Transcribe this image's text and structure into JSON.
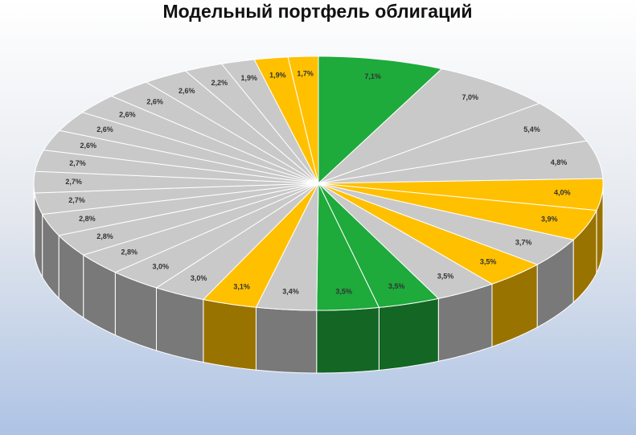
{
  "chart_data": {
    "type": "pie3d",
    "title": "Модельный портфель облигаций",
    "values": [
      7.1,
      7.0,
      5.4,
      4.8,
      4.0,
      3.9,
      3.7,
      3.5,
      3.5,
      3.5,
      3.5,
      3.4,
      3.1,
      3.0,
      3.0,
      2.8,
      2.8,
      2.8,
      2.7,
      2.7,
      2.7,
      2.6,
      2.6,
      2.6,
      2.6,
      2.6,
      2.2,
      1.9,
      1.9,
      1.7
    ],
    "value_labels": [
      "7,1%",
      "7,0%",
      "5,4%",
      "4,8%",
      "4,0%",
      "3,9%",
      "3,7%",
      "3,5%",
      "3,5%",
      "3,5%",
      "3,5%",
      "3,4%",
      "3,1%",
      "3,0%",
      "3,0%",
      "2,8%",
      "2,8%",
      "2,8%",
      "2,7%",
      "2,7%",
      "2,7%",
      "2,6%",
      "2,6%",
      "2,6%",
      "2,6%",
      "2,6%",
      "2,2%",
      "1,9%",
      "1,9%",
      "1,7%"
    ],
    "colors": [
      "#1faa3c",
      "#c9c9c9",
      "#c9c9c9",
      "#c9c9c9",
      "#ffc000",
      "#ffc000",
      "#c9c9c9",
      "#ffc000",
      "#c9c9c9",
      "#1faa3c",
      "#1faa3c",
      "#c9c9c9",
      "#ffc000",
      "#c9c9c9",
      "#c9c9c9",
      "#c9c9c9",
      "#c9c9c9",
      "#c9c9c9",
      "#c9c9c9",
      "#c9c9c9",
      "#c9c9c9",
      "#c9c9c9",
      "#c9c9c9",
      "#c9c9c9",
      "#c9c9c9",
      "#c9c9c9",
      "#c9c9c9",
      "#c9c9c9",
      "#ffc000",
      "#ffc000"
    ]
  }
}
